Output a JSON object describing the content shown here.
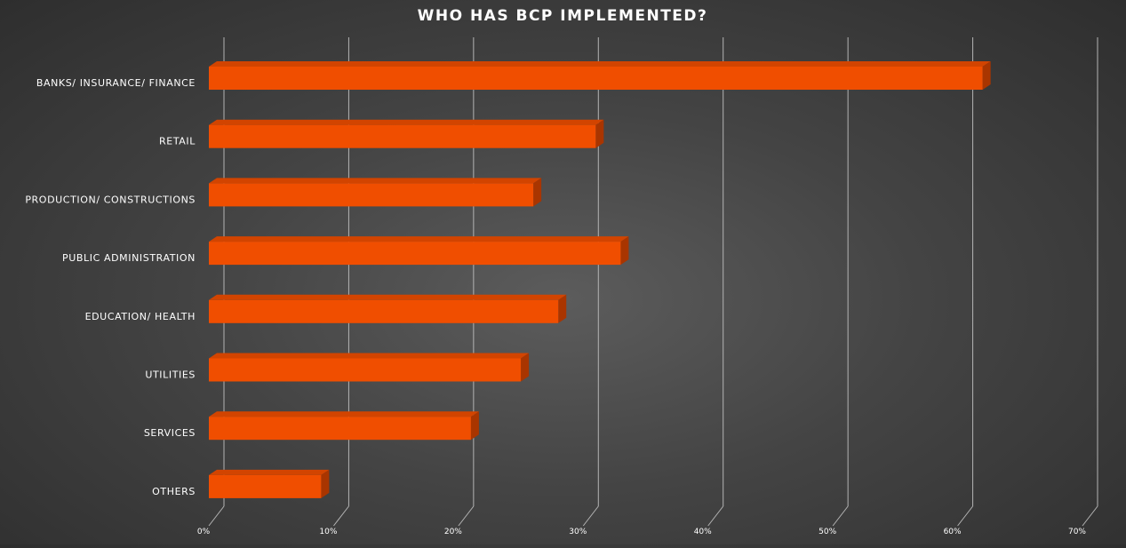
{
  "chart_data": {
    "type": "bar",
    "orientation": "horizontal",
    "title": "WHO HAS BCP IMPLEMENTED?",
    "categories": [
      "BANKS/ INSURANCE/ FINANCE",
      "RETAIL",
      "PRODUCTION/ CONSTRUCTIONS",
      "PUBLIC ADMINISTRATION",
      "EDUCATION/ HEALTH",
      "UTILITIES",
      "SERVICES",
      "OTHERS"
    ],
    "values": [
      62,
      31,
      26,
      33,
      28,
      25,
      21,
      9
    ],
    "xlim": [
      0,
      70
    ],
    "xticks": [
      0,
      10,
      20,
      30,
      40,
      50,
      60,
      70
    ],
    "xtick_labels": [
      "0%",
      "10%",
      "20%",
      "30%",
      "40%",
      "50%",
      "60%",
      "70%"
    ],
    "grid": true,
    "legend": "none",
    "style": "3d",
    "colors": {
      "bar_front": "#f04e00",
      "bar_top": "#d24400",
      "bar_side": "#a93500",
      "gridline": "#b4b4b4",
      "text": "#ffffff"
    }
  }
}
